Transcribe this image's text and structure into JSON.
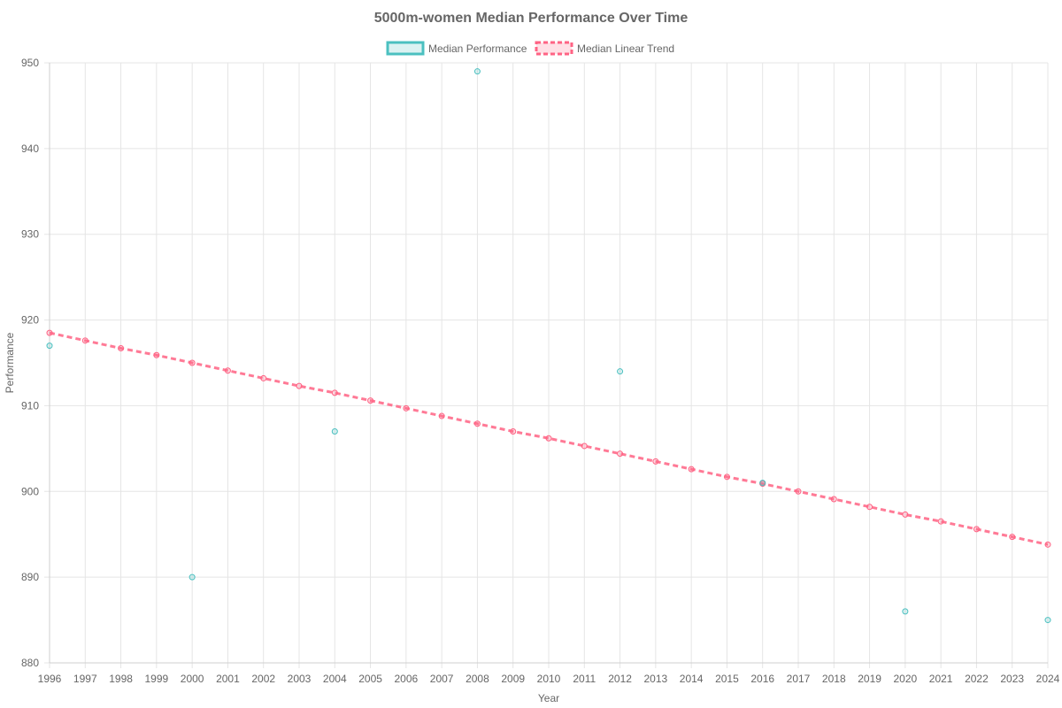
{
  "chart_data": {
    "type": "scatter",
    "title": "5000m-women Median Performance Over Time",
    "xlabel": "Year",
    "ylabel": "Performance",
    "x": [
      1996,
      1997,
      1998,
      1999,
      2000,
      2001,
      2002,
      2003,
      2004,
      2005,
      2006,
      2007,
      2008,
      2009,
      2010,
      2011,
      2012,
      2013,
      2014,
      2015,
      2016,
      2017,
      2018,
      2019,
      2020,
      2021,
      2022,
      2023,
      2024
    ],
    "xlim": [
      1996,
      2024
    ],
    "ylim": [
      880,
      950
    ],
    "y_ticks": [
      880,
      890,
      900,
      910,
      920,
      930,
      940,
      950
    ],
    "grid": true,
    "legend_position": "top",
    "series": [
      {
        "name": "Median Performance",
        "style": "points",
        "color": "#4bc0c0",
        "points": [
          {
            "x": 1996,
            "y": 917
          },
          {
            "x": 2000,
            "y": 890
          },
          {
            "x": 2004,
            "y": 907
          },
          {
            "x": 2008,
            "y": 949
          },
          {
            "x": 2012,
            "y": 914
          },
          {
            "x": 2016,
            "y": 901
          },
          {
            "x": 2020,
            "y": 886
          },
          {
            "x": 2024,
            "y": 885
          }
        ]
      },
      {
        "name": "Median Linear Trend",
        "style": "dashed-line",
        "color": "#ff6384",
        "points": [
          {
            "x": 1996,
            "y": 918.5
          },
          {
            "x": 1997,
            "y": 917.6
          },
          {
            "x": 1998,
            "y": 916.7
          },
          {
            "x": 1999,
            "y": 915.9
          },
          {
            "x": 2000,
            "y": 915.0
          },
          {
            "x": 2001,
            "y": 914.1
          },
          {
            "x": 2002,
            "y": 913.2
          },
          {
            "x": 2003,
            "y": 912.3
          },
          {
            "x": 2004,
            "y": 911.5
          },
          {
            "x": 2005,
            "y": 910.6
          },
          {
            "x": 2006,
            "y": 909.7
          },
          {
            "x": 2007,
            "y": 908.8
          },
          {
            "x": 2008,
            "y": 907.9
          },
          {
            "x": 2009,
            "y": 907.0
          },
          {
            "x": 2010,
            "y": 906.2
          },
          {
            "x": 2011,
            "y": 905.3
          },
          {
            "x": 2012,
            "y": 904.4
          },
          {
            "x": 2013,
            "y": 903.5
          },
          {
            "x": 2014,
            "y": 902.6
          },
          {
            "x": 2015,
            "y": 901.7
          },
          {
            "x": 2016,
            "y": 900.9
          },
          {
            "x": 2017,
            "y": 900.0
          },
          {
            "x": 2018,
            "y": 899.1
          },
          {
            "x": 2019,
            "y": 898.2
          },
          {
            "x": 2020,
            "y": 897.3
          },
          {
            "x": 2021,
            "y": 896.5
          },
          {
            "x": 2022,
            "y": 895.6
          },
          {
            "x": 2023,
            "y": 894.7
          },
          {
            "x": 2024,
            "y": 893.8
          }
        ]
      }
    ]
  }
}
